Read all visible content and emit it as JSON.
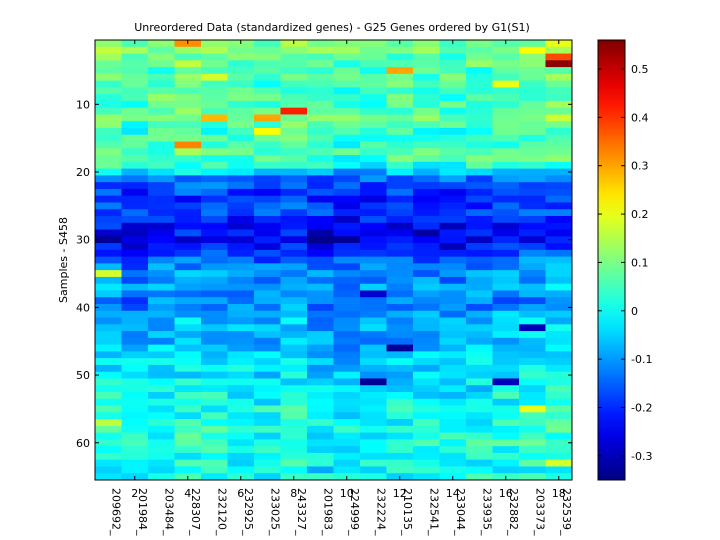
{
  "chart_data": {
    "type": "heatmap",
    "title": "Unreordered Data (standardized genes) - G25 Genes ordered by G1(S1)",
    "ylabel": "Samples - S458",
    "xlabel": "",
    "n_rows": 65,
    "n_cols": 18,
    "x_ticks": [
      2,
      4,
      6,
      8,
      10,
      12,
      14,
      16,
      18
    ],
    "y_ticks": [
      10,
      20,
      30,
      40,
      50,
      60
    ],
    "gene_labels": [
      "209692_",
      "201984_",
      "203484_",
      "228307_",
      "232120_",
      "232925_",
      "233025_",
      "243327_",
      "201983_",
      "224999_",
      "232224_",
      "210135_",
      "232541_",
      "233044_",
      "233935_",
      "232882_",
      "203373_",
      "232539_"
    ],
    "colorbar": {
      "min": -0.35,
      "max": 0.56,
      "ticks": [
        "0.5",
        "0.4",
        "0.3",
        "0.2",
        "0.1",
        "0",
        "-0.1",
        "-0.2",
        "-0.3"
      ]
    },
    "colors": {
      "background": "#ffffff",
      "axis": "#000000"
    },
    "row_profile": [
      0.1,
      0.12,
      0.08,
      0.1,
      0.06,
      0.08,
      0.06,
      0.05,
      0.07,
      0.06,
      0.08,
      0.1,
      0.06,
      0.04,
      0.06,
      0.05,
      0.07,
      0.06,
      0.03,
      -0.05,
      -0.12,
      -0.14,
      -0.18,
      -0.2,
      -0.18,
      -0.16,
      -0.2,
      -0.22,
      -0.23,
      -0.24,
      -0.22,
      -0.18,
      -0.14,
      -0.12,
      -0.1,
      -0.1,
      -0.08,
      -0.1,
      -0.12,
      -0.1,
      -0.08,
      -0.06,
      -0.06,
      -0.05,
      -0.07,
      -0.06,
      -0.04,
      -0.03,
      -0.02,
      -0.03,
      -0.02,
      -0.02,
      0.0,
      0.0,
      0.02,
      0.0,
      0.02,
      0.03,
      0.02,
      0.03,
      0.02,
      0.0,
      0.01,
      0.0,
      0.02
    ],
    "col_profile": [
      0.0,
      -0.02,
      0.0,
      0.01,
      0.0,
      -0.01,
      -0.01,
      0.01,
      -0.03,
      -0.03,
      -0.02,
      -0.01,
      -0.02,
      -0.02,
      -0.01,
      0.0,
      0.01,
      0.02
    ],
    "highlights": [
      {
        "row": 1,
        "col": 4,
        "value": 0.32
      },
      {
        "row": 1,
        "col": 18,
        "value": 0.2
      },
      {
        "row": 2,
        "col": 17,
        "value": 0.22
      },
      {
        "row": 3,
        "col": 18,
        "value": 0.38
      },
      {
        "row": 4,
        "col": 18,
        "value": 0.55
      },
      {
        "row": 5,
        "col": 12,
        "value": 0.3
      },
      {
        "row": 6,
        "col": 5,
        "value": 0.18
      },
      {
        "row": 7,
        "col": 16,
        "value": 0.2
      },
      {
        "row": 11,
        "col": 8,
        "value": 0.42
      },
      {
        "row": 12,
        "col": 5,
        "value": 0.28
      },
      {
        "row": 12,
        "col": 7,
        "value": 0.3
      },
      {
        "row": 16,
        "col": 4,
        "value": 0.33
      },
      {
        "row": 14,
        "col": 7,
        "value": 0.22
      },
      {
        "row": 30,
        "col": 9,
        "value": -0.34
      },
      {
        "row": 30,
        "col": 10,
        "value": -0.33
      },
      {
        "row": 30,
        "col": 1,
        "value": -0.33
      },
      {
        "row": 29,
        "col": 13,
        "value": -0.32
      },
      {
        "row": 46,
        "col": 12,
        "value": -0.33
      },
      {
        "row": 51,
        "col": 11,
        "value": -0.33
      },
      {
        "row": 51,
        "col": 16,
        "value": -0.3
      },
      {
        "row": 55,
        "col": 17,
        "value": 0.2
      },
      {
        "row": 63,
        "col": 18,
        "value": 0.18
      },
      {
        "row": 57,
        "col": 1,
        "value": 0.16
      },
      {
        "row": 35,
        "col": 1,
        "value": 0.18
      },
      {
        "row": 43,
        "col": 17,
        "value": -0.3
      },
      {
        "row": 38,
        "col": 11,
        "value": -0.28
      }
    ]
  }
}
